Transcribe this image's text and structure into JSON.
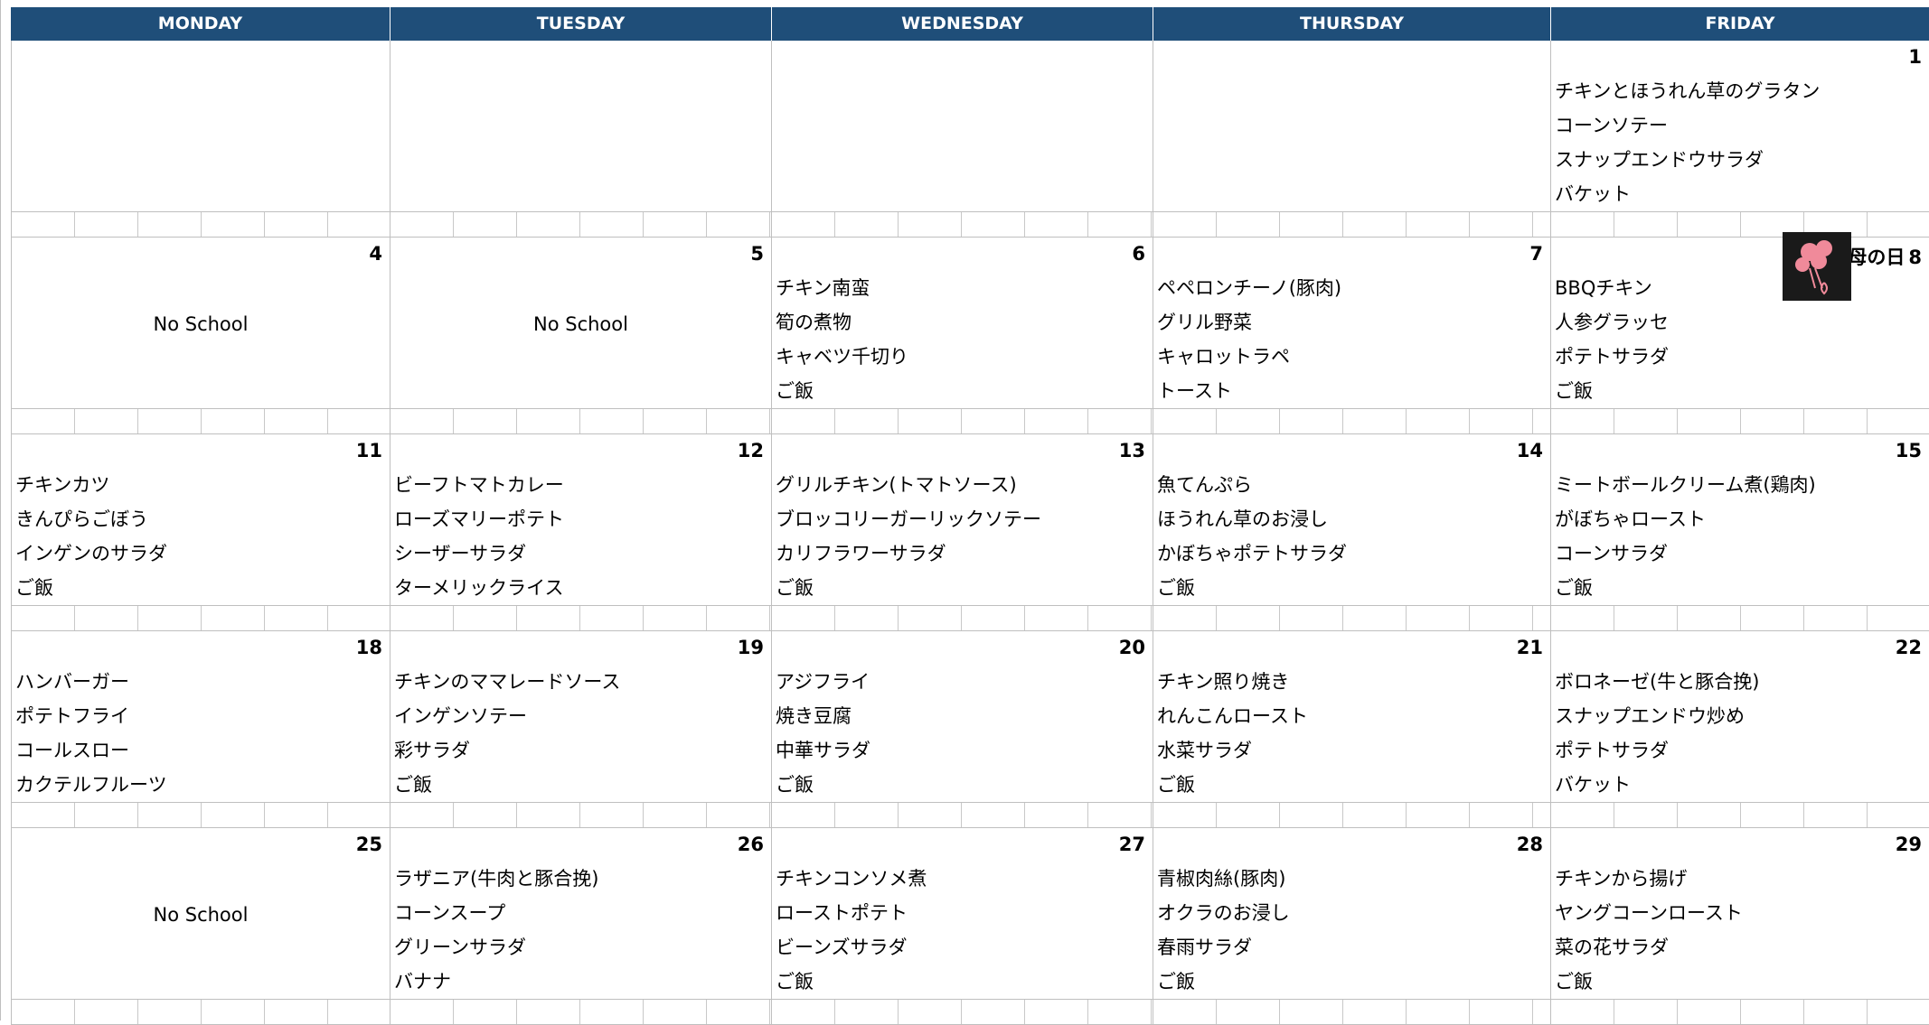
{
  "header": {
    "days": [
      "MONDAY",
      "TUESDAY",
      "WEDNESDAY",
      "THURSDAY",
      "FRIDAY"
    ]
  },
  "weeks": [
    {
      "cells": [
        null,
        null,
        null,
        null,
        {
          "date": "1",
          "items": [
            "チキンとほうれん草のグラタン",
            "コーンソテー",
            "スナップエンドウサラダ",
            "バケット"
          ]
        }
      ]
    },
    {
      "cells": [
        {
          "date": "4",
          "note": "No School"
        },
        {
          "date": "5",
          "note": "No School"
        },
        {
          "date": "6",
          "items": [
            "チキン南蛮",
            "筍の煮物",
            "キャベツ千切り",
            "ご飯"
          ]
        },
        {
          "date": "7",
          "items": [
            "ペペロンチーノ(豚肉)",
            "グリル野菜",
            "キャロットラペ",
            "トースト"
          ]
        },
        {
          "date": "8",
          "label": "母の日",
          "items": [
            "BBQチキン",
            "人参グラッセ",
            "ポテトサラダ",
            "ご飯"
          ]
        }
      ]
    },
    {
      "cells": [
        {
          "date": "11",
          "items": [
            "チキンカツ",
            "きんぴらごぼう",
            "インゲンのサラダ",
            "ご飯"
          ]
        },
        {
          "date": "12",
          "items": [
            "ビーフトマトカレー",
            "ローズマリーポテト",
            "シーザーサラダ",
            "ターメリックライス"
          ]
        },
        {
          "date": "13",
          "items": [
            "グリルチキン(トマトソース)",
            "ブロッコリーガーリックソテー",
            "カリフラワーサラダ",
            "ご飯"
          ]
        },
        {
          "date": "14",
          "items": [
            "魚てんぷら",
            "ほうれん草のお浸し",
            "かぼちゃポテトサラダ",
            "ご飯"
          ]
        },
        {
          "date": "15",
          "items": [
            "ミートボールクリーム煮(鶏肉)",
            "がぼちゃロースト",
            "コーンサラダ",
            "ご飯"
          ]
        }
      ]
    },
    {
      "cells": [
        {
          "date": "18",
          "items": [
            "ハンバーガー",
            "ポテトフライ",
            "コールスロー",
            "カクテルフルーツ"
          ]
        },
        {
          "date": "19",
          "items": [
            "チキンのママレードソース",
            "インゲンソテー",
            "彩サラダ",
            "ご飯"
          ]
        },
        {
          "date": "20",
          "items": [
            "アジフライ",
            "焼き豆腐",
            "中華サラダ",
            "ご飯"
          ]
        },
        {
          "date": "21",
          "items": [
            "チキン照り焼き",
            "れんこんロースト",
            "水菜サラダ",
            "ご飯"
          ]
        },
        {
          "date": "22",
          "items": [
            "ボロネーゼ(牛と豚合挽)",
            "スナップエンドウ炒め",
            "ポテトサラダ",
            "バケット"
          ]
        }
      ]
    },
    {
      "cells": [
        {
          "date": "25",
          "note": "No School"
        },
        {
          "date": "26",
          "items": [
            "ラザニア(牛肉と豚合挽)",
            "コーンスープ",
            "グリーンサラダ",
            "バナナ"
          ]
        },
        {
          "date": "27",
          "items": [
            "チキンコンソメ煮",
            "ローストポテト",
            "ビーンズサラダ",
            "ご飯"
          ]
        },
        {
          "date": "28",
          "items": [
            "青椒肉絲(豚肉)",
            "オクラのお浸し",
            "春雨サラダ",
            "ご飯"
          ]
        },
        {
          "date": "29",
          "items": [
            "チキンから揚げ",
            "ヤングコーンロースト",
            "菜の花サラダ",
            "ご飯"
          ]
        }
      ]
    }
  ]
}
